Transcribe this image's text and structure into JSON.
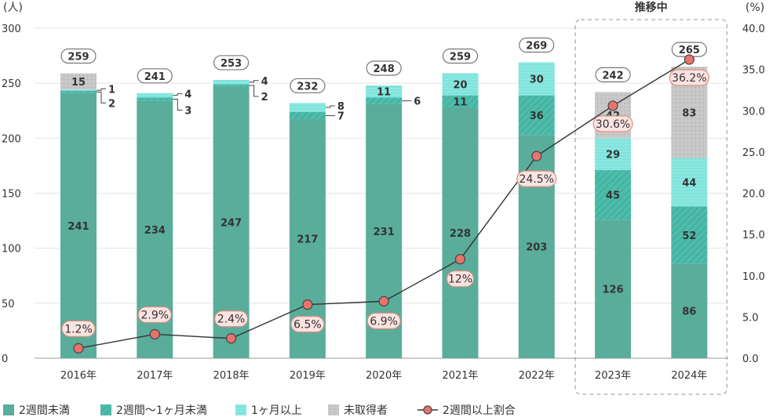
{
  "chart_data": {
    "type": "bar",
    "stacked": true,
    "categories": [
      "2016年",
      "2017年",
      "2018年",
      "2019年",
      "2020年",
      "2021年",
      "2022年",
      "2023年",
      "2024年"
    ],
    "left_axis": {
      "unit_label": "(人)",
      "ylim": [
        0,
        300
      ],
      "ticks": [
        0,
        50,
        100,
        150,
        200,
        250,
        300
      ]
    },
    "right_axis": {
      "unit_label": "(%)",
      "ylim": [
        0,
        40
      ],
      "ticks": [
        "0.0",
        "5.0",
        "10.0",
        "15.0",
        "20.0",
        "25.0",
        "30.0",
        "35.0",
        "40.0"
      ]
    },
    "series": [
      {
        "name": "2週間未満",
        "color": "#5aad9b",
        "values": [
          241,
          234,
          247,
          217,
          231,
          228,
          203,
          126,
          86
        ]
      },
      {
        "name": "2週間〜1ヶ月未満",
        "color": "#4dbcab",
        "pattern": "hatch",
        "values": [
          2,
          3,
          2,
          7,
          6,
          11,
          36,
          45,
          52
        ]
      },
      {
        "name": "1ヶ月以上",
        "color": "#7fe3dc",
        "pattern": "lines",
        "values": [
          1,
          4,
          4,
          8,
          11,
          20,
          30,
          29,
          44
        ]
      },
      {
        "name": "未取得者",
        "color": "#c6c6c6",
        "pattern": "dots",
        "values": [
          15,
          0,
          0,
          0,
          0,
          0,
          0,
          42,
          83
        ]
      }
    ],
    "totals": [
      259,
      241,
      253,
      232,
      248,
      259,
      269,
      242,
      265
    ],
    "line_series": {
      "name": "2週間以上割合",
      "color": "#e8736d",
      "values": [
        1.2,
        2.9,
        2.4,
        6.5,
        6.9,
        12,
        24.5,
        30.6,
        36.2
      ],
      "labels": [
        "1.2%",
        "2.9%",
        "2.4%",
        "6.5%",
        "6.9%",
        "12%",
        "24.5%",
        "30.6%",
        "36.2%"
      ]
    },
    "highlight": {
      "label": "推移中",
      "categories": [
        "2023年",
        "2024年"
      ]
    },
    "grid": true,
    "legend_position": "bottom"
  }
}
